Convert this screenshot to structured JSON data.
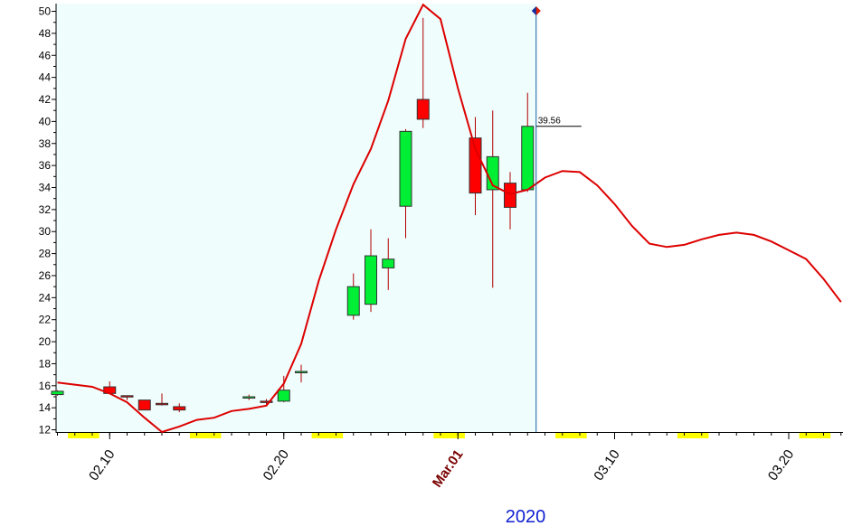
{
  "chart_data": {
    "type": "candlestick",
    "title": "",
    "xlabel": "2020",
    "ylabel": "",
    "ylim": [
      11.8,
      50.7
    ],
    "y_ticks": [
      12,
      14,
      16,
      18,
      20,
      22,
      24,
      26,
      28,
      30,
      32,
      34,
      36,
      38,
      40,
      42,
      44,
      46,
      48,
      50
    ],
    "x_tick_labels": [
      {
        "label": "02.10",
        "day": 10,
        "bold": false
      },
      {
        "label": "02.20",
        "day": 20,
        "bold": false
      },
      {
        "label": "Mar.01",
        "day": 30,
        "bold": true
      },
      {
        "label": "03.10",
        "day": 39,
        "bold": false
      },
      {
        "label": "03.20",
        "day": 49,
        "bold": false
      }
    ],
    "year_label": "2020",
    "last_price_label": "39.56",
    "colors": {
      "up": "#00ee33",
      "down": "#ff0000",
      "line": "#dd0000",
      "history_bg": "#f0fdfd",
      "weekend": "#ffff00",
      "cursor": "#1060a0"
    },
    "candles": [
      {
        "day": 7,
        "open": 15.2,
        "high": 15.6,
        "low": 15.1,
        "close": 15.5
      },
      {
        "day": 10,
        "open": 15.9,
        "high": 16.4,
        "low": 15.3,
        "close": 15.3
      },
      {
        "day": 11,
        "open": 15.1,
        "high": 15.1,
        "low": 14.7,
        "close": 15.0
      },
      {
        "day": 12,
        "open": 14.7,
        "high": 14.7,
        "low": 13.8,
        "close": 13.8
      },
      {
        "day": 13,
        "open": 14.4,
        "high": 15.3,
        "low": 14.2,
        "close": 14.3
      },
      {
        "day": 14,
        "open": 14.1,
        "high": 14.4,
        "low": 13.6,
        "close": 13.8
      },
      {
        "day": 18,
        "open": 14.9,
        "high": 15.2,
        "low": 14.7,
        "close": 15.0
      },
      {
        "day": 19,
        "open": 14.6,
        "high": 14.8,
        "low": 14.3,
        "close": 14.5
      },
      {
        "day": 20,
        "open": 14.6,
        "high": 16.9,
        "low": 14.5,
        "close": 15.6
      },
      {
        "day": 21,
        "open": 17.2,
        "high": 17.9,
        "low": 16.3,
        "close": 17.3
      },
      {
        "day": 24,
        "open": 22.4,
        "high": 26.2,
        "low": 22.0,
        "close": 25.0
      },
      {
        "day": 25,
        "open": 23.4,
        "high": 30.2,
        "low": 22.7,
        "close": 27.8
      },
      {
        "day": 26,
        "open": 26.7,
        "high": 29.4,
        "low": 24.7,
        "close": 27.5
      },
      {
        "day": 27,
        "open": 32.3,
        "high": 39.3,
        "low": 29.4,
        "close": 39.1
      },
      {
        "day": 28,
        "open": 42.0,
        "high": 49.4,
        "low": 39.4,
        "close": 40.2
      },
      {
        "day": 31,
        "open": 38.5,
        "high": 40.4,
        "low": 31.5,
        "close": 33.5
      },
      {
        "day": 32,
        "open": 33.8,
        "high": 41.0,
        "low": 24.9,
        "close": 36.8
      },
      {
        "day": 33,
        "open": 34.4,
        "high": 35.4,
        "low": 30.2,
        "close": 32.2
      },
      {
        "day": 34,
        "open": 33.8,
        "high": 42.6,
        "low": 33.6,
        "close": 39.56
      }
    ],
    "series": [
      {
        "x": [
          7,
          9,
          10,
          11,
          12,
          13,
          14,
          15,
          16,
          17,
          18,
          19,
          20,
          21,
          22,
          23,
          24,
          25,
          26,
          27,
          28,
          29,
          30,
          31,
          32,
          33,
          34,
          35,
          36,
          37,
          38,
          39,
          40,
          41,
          42,
          43,
          44,
          45,
          46,
          47,
          48,
          49,
          50,
          51,
          52
        ],
        "values": [
          16.3,
          15.9,
          15.3,
          14.5,
          13.1,
          11.8,
          12.3,
          12.9,
          13.1,
          13.7,
          13.9,
          14.2,
          16.2,
          19.8,
          25.5,
          30.2,
          34.3,
          37.5,
          41.9,
          47.5,
          50.6,
          49.3,
          43.0,
          37.5,
          34.2,
          33.4,
          33.8,
          34.9,
          35.5,
          35.4,
          34.2,
          32.5,
          30.5,
          28.9,
          28.6,
          28.8,
          29.3,
          29.7,
          29.9,
          29.7,
          29.1,
          28.3,
          27.5,
          25.7,
          23.6
        ]
      }
    ],
    "weekend_days": [
      [
        8,
        9
      ],
      [
        15,
        16
      ],
      [
        22,
        23
      ],
      [
        29,
        30
      ],
      [
        36,
        37
      ],
      [
        43,
        44
      ],
      [
        50,
        51
      ]
    ],
    "history_end_day": 34,
    "grid": false,
    "legend": "none"
  }
}
